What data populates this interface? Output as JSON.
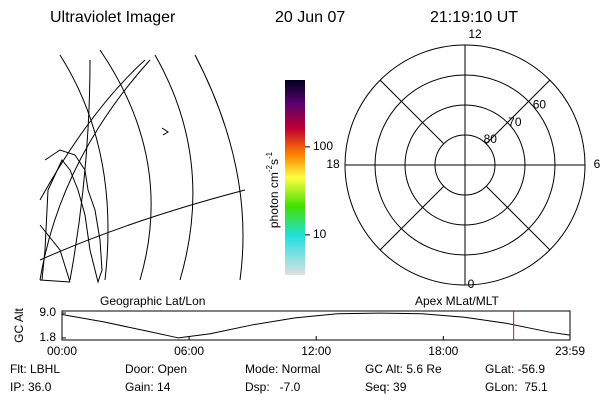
{
  "header": {
    "title": "Ultraviolet Imager",
    "date": "20 Jun 07",
    "time": "21:19:10 UT"
  },
  "map": {
    "label": "Geographic Lat/Lon"
  },
  "colorbar": {
    "label": "photon cm",
    "exp1": "-2",
    "unit2": "s",
    "exp2": "-1",
    "lim": [
      3.5,
      575
    ],
    "ticks": [
      10,
      100
    ],
    "log": true
  },
  "polar": {
    "label": "Apex MLat/MLT",
    "rlim": [
      90,
      50
    ],
    "lats": [
      80,
      70,
      60
    ],
    "hours": [
      "12",
      "6",
      "0",
      "18"
    ]
  },
  "chart_data": {
    "type": "line",
    "y_label": "GC Alt",
    "xlim": [
      0,
      23.98
    ],
    "xticks": [
      {
        "value": 0,
        "label": "00:00"
      },
      {
        "value": 6,
        "label": "06:00"
      },
      {
        "value": 12,
        "label": "12:00"
      },
      {
        "value": 18,
        "label": "18:00"
      },
      {
        "value": 23.98,
        "label": "23:59"
      }
    ],
    "ylim": [
      1.2,
      9.6
    ],
    "yticks": [
      {
        "value": 9,
        "label": "9.0"
      },
      {
        "value": 1.8,
        "label": "1.8"
      }
    ],
    "x": [
      0,
      2,
      4,
      5.5,
      7,
      9,
      11,
      13,
      15,
      17,
      19,
      21,
      23,
      23.98
    ],
    "series": [
      {
        "name": "GC Alt",
        "color": "#000000",
        "values": [
          8.6,
          6.4,
          3.8,
          1.8,
          3.0,
          5.6,
          7.6,
          8.8,
          9.0,
          8.8,
          7.8,
          6.0,
          3.5,
          2.6
        ]
      }
    ],
    "marker_x": 21.32,
    "marker_color": "#ff0000"
  },
  "footer": {
    "rows": [
      [
        "Flt: LBHL",
        "Door: Open",
        "Mode: Normal",
        "GC Alt: 5.6 Re",
        "GLat: -56.9"
      ],
      [
        "IP: 36.0",
        "Gain: 14",
        "Dsp:   -7.0",
        "Seq: 39",
        "GLon:  75.1"
      ]
    ]
  }
}
